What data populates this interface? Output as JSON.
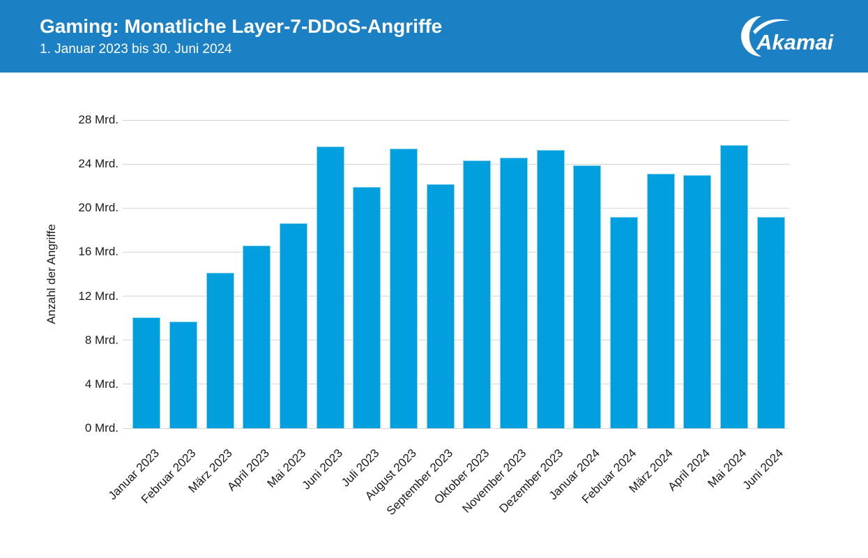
{
  "header": {
    "title": "Gaming: Monatliche Layer-7-DDoS-Angriffe",
    "subtitle": "1. Januar 2023 bis 30. Juni 2024",
    "brand": "Akamai",
    "background_color": "#1b80c4",
    "text_color": "#ffffff",
    "logo_icon": "akamai-crescent-logo"
  },
  "chart_data": {
    "type": "bar",
    "title": "Gaming: Monatliche Layer-7-DDoS-Angriffe",
    "subtitle": "1. Januar 2023 bis 30. Juni 2024",
    "xlabel": "",
    "ylabel": "Anzahl der Angriffe",
    "unit": "Mrd.",
    "ylim": [
      0,
      28
    ],
    "ytick_step": 4,
    "yticks": [
      {
        "value": 0,
        "label": "0 Mrd."
      },
      {
        "value": 4,
        "label": "4 Mrd."
      },
      {
        "value": 8,
        "label": "8 Mrd."
      },
      {
        "value": 12,
        "label": "12 Mrd."
      },
      {
        "value": 16,
        "label": "16 Mrd."
      },
      {
        "value": 20,
        "label": "20 Mrd."
      },
      {
        "value": 24,
        "label": "24 Mrd."
      },
      {
        "value": 28,
        "label": "28 Mrd."
      }
    ],
    "categories": [
      "Januar 2023",
      "Februar 2023",
      "März 2023",
      "April 2023",
      "Mai 2023",
      "Juni 2023",
      "Juli 2023",
      "August 2023",
      "September 2023",
      "Oktober 2023",
      "November 2023",
      "Dezember 2023",
      "Januar 2024",
      "Februar 2024",
      "März 2024",
      "April 2024",
      "Mai 2024",
      "Juni 2024"
    ],
    "values": [
      10.1,
      9.7,
      14.1,
      16.6,
      18.6,
      25.6,
      21.9,
      25.4,
      22.2,
      24.3,
      24.6,
      25.3,
      23.9,
      19.2,
      23.1,
      23.0,
      25.7,
      19.2
    ],
    "bar_color": "#029fdf",
    "grid_color": "#d6d6d6",
    "grid": "horizontal-only",
    "legend_position": "none",
    "x_label_rotation_deg": -45
  }
}
